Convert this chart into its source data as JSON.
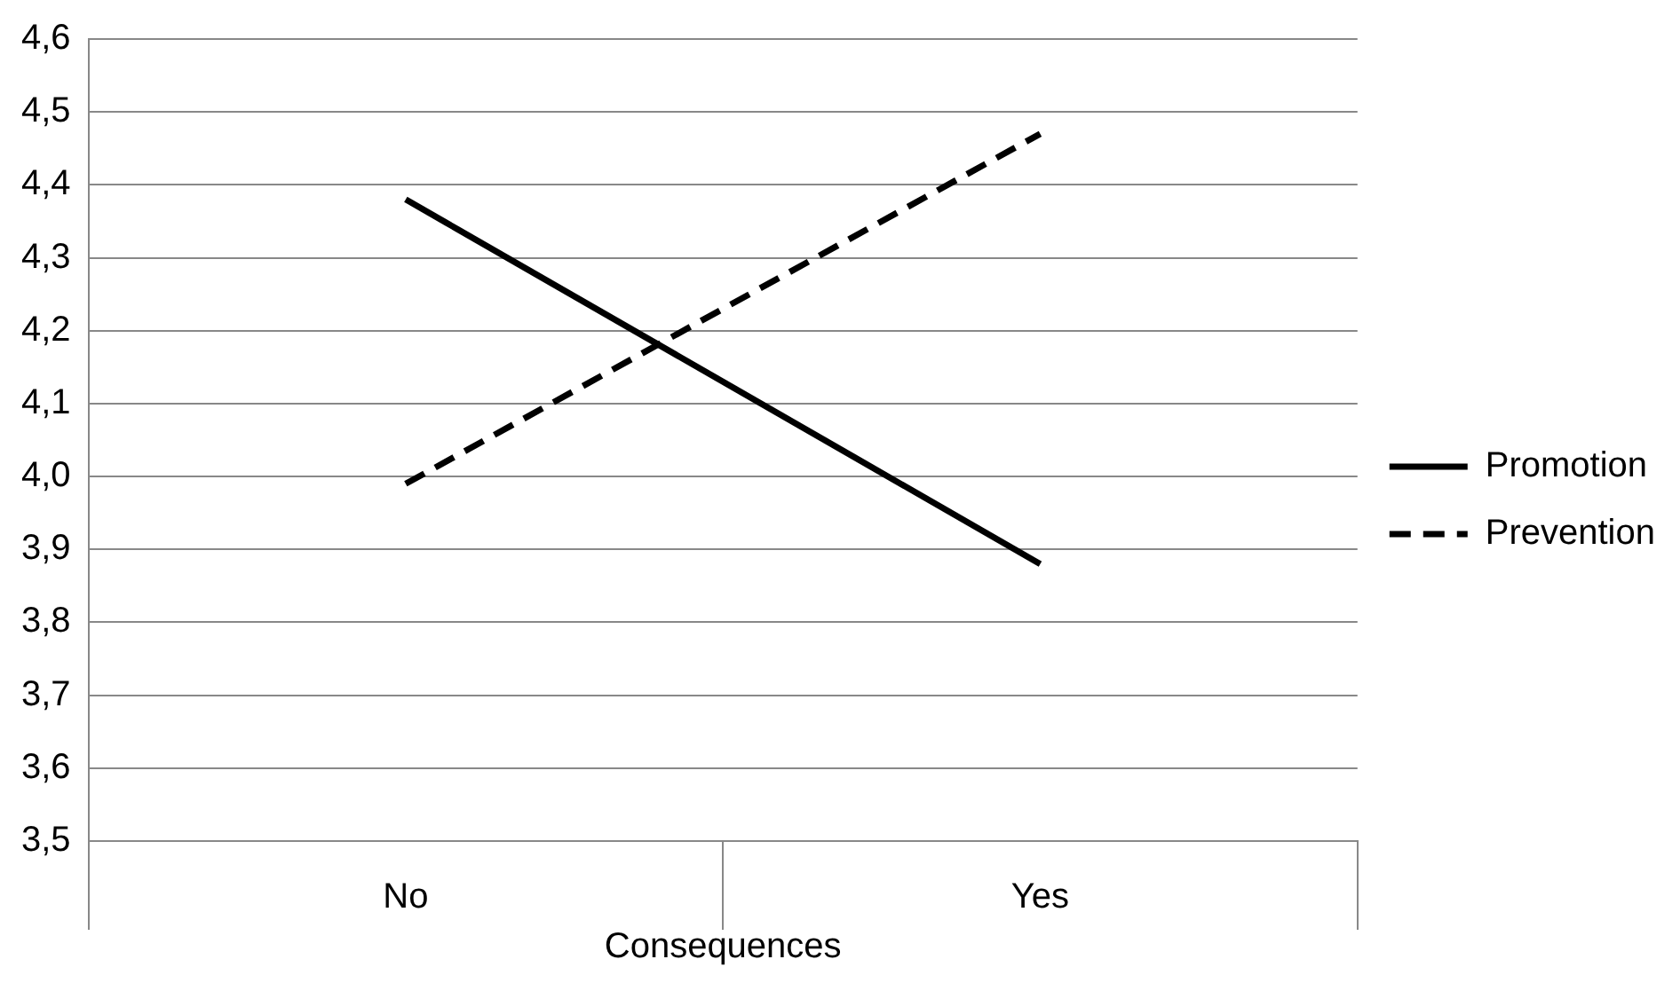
{
  "chart_data": {
    "type": "line",
    "xlabel": "Consequences",
    "categories": [
      "No",
      "Yes"
    ],
    "series": [
      {
        "name": "Promotion",
        "color": "#000000",
        "values": [
          4.38,
          3.88
        ],
        "line_style": "solid"
      },
      {
        "name": "Prevention",
        "color": "#000000",
        "values": [
          3.99,
          4.47
        ],
        "line_style": "dashed"
      }
    ],
    "ylim": [
      3.5,
      4.6
    ],
    "yticks": [
      {
        "value": 3.5,
        "label": "3,5"
      },
      {
        "value": 3.6,
        "label": "3,6"
      },
      {
        "value": 3.7,
        "label": "3,7"
      },
      {
        "value": 3.8,
        "label": "3,8"
      },
      {
        "value": 3.9,
        "label": "3,9"
      },
      {
        "value": 4.0,
        "label": "4,0"
      },
      {
        "value": 4.1,
        "label": "4,1"
      },
      {
        "value": 4.2,
        "label": "4,2"
      },
      {
        "value": 4.3,
        "label": "4,3"
      },
      {
        "value": 4.4,
        "label": "4,4"
      },
      {
        "value": 4.5,
        "label": "4,5"
      },
      {
        "value": 4.6,
        "label": "4,6"
      }
    ],
    "grid": "y",
    "legend": "right",
    "marker": "none"
  }
}
